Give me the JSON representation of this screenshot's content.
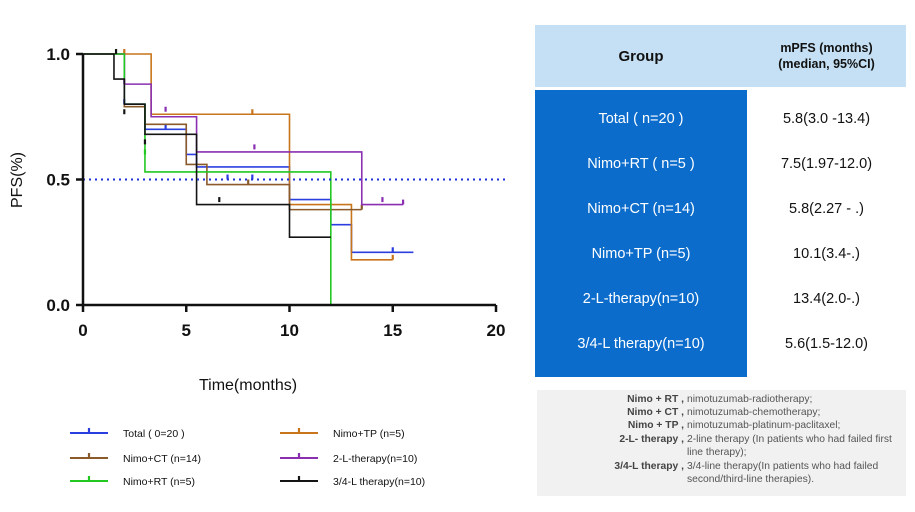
{
  "chart_data": {
    "type": "line",
    "subtype": "kaplan-meier step",
    "title": "",
    "xlabel": "Time(months)",
    "ylabel": "PFS(%)",
    "xlim": [
      0,
      20
    ],
    "ylim": [
      0,
      1.0
    ],
    "x_ticks": [
      "0",
      "5",
      "10",
      "15",
      "20"
    ],
    "y_ticks": [
      "0.0",
      "0.5",
      "1.0"
    ],
    "reference_line": {
      "y": 0.5,
      "style": "dotted",
      "color": "#1f2fd8"
    },
    "series": [
      {
        "name": "Total ( 0=20 )",
        "color": "#2b3fe0",
        "steps": [
          [
            0,
            1.0
          ],
          [
            2,
            0.8
          ],
          [
            3,
            0.7
          ],
          [
            5,
            0.6
          ],
          [
            5.5,
            0.55
          ],
          [
            10,
            0.42
          ],
          [
            12,
            0.32
          ],
          [
            13,
            0.21
          ],
          [
            16,
            0.21
          ]
        ],
        "censored": [
          [
            2,
            0.8
          ],
          [
            4,
            0.7
          ],
          [
            7,
            0.5
          ],
          [
            8.2,
            0.5
          ],
          [
            15,
            0.21
          ]
        ]
      },
      {
        "name": "Nimo+TP (n=5)",
        "color": "#c8741a",
        "steps": [
          [
            0,
            1.0
          ],
          [
            3.3,
            0.76
          ],
          [
            10,
            0.4
          ],
          [
            13,
            0.18
          ],
          [
            15,
            0.18
          ]
        ],
        "censored": [
          [
            2,
            1.0
          ],
          [
            8.2,
            0.76
          ],
          [
            15,
            0.18
          ]
        ]
      },
      {
        "name": "Nimo+CT (n=14)",
        "color": "#8a5a2b",
        "steps": [
          [
            0,
            1.0
          ],
          [
            2,
            0.79
          ],
          [
            3,
            0.72
          ],
          [
            5,
            0.56
          ],
          [
            6,
            0.48
          ],
          [
            10,
            0.38
          ],
          [
            13.5,
            0.38
          ]
        ],
        "censored": [
          [
            8,
            0.48
          ],
          [
            13.5,
            0.38
          ]
        ]
      },
      {
        "name": "2-L-therapy(n=10)",
        "color": "#8a2fb0",
        "steps": [
          [
            0,
            1.0
          ],
          [
            2,
            0.88
          ],
          [
            3.3,
            0.75
          ],
          [
            5.5,
            0.61
          ],
          [
            13.5,
            0.4
          ],
          [
            15.5,
            0.4
          ]
        ],
        "censored": [
          [
            2,
            0.88
          ],
          [
            4,
            0.77
          ],
          [
            8.3,
            0.62
          ],
          [
            14.5,
            0.41
          ],
          [
            15.5,
            0.4
          ]
        ]
      },
      {
        "name": "Nimo+RT (n=5)",
        "color": "#22c722",
        "steps": [
          [
            0,
            1.0
          ],
          [
            2,
            0.8
          ],
          [
            3,
            0.53
          ],
          [
            12,
            0.0
          ]
        ],
        "censored": [
          [
            3,
            0.6
          ]
        ]
      },
      {
        "name": "3/4-L therapy(n=10)",
        "color": "#141414",
        "steps": [
          [
            0,
            1.0
          ],
          [
            1.5,
            0.9
          ],
          [
            2,
            0.8
          ],
          [
            3,
            0.68
          ],
          [
            5.5,
            0.4
          ],
          [
            10,
            0.27
          ],
          [
            12,
            0.27
          ]
        ],
        "censored": [
          [
            1.6,
            1.0
          ],
          [
            2,
            0.76
          ],
          [
            3,
            0.64
          ],
          [
            6.6,
            0.41
          ]
        ]
      }
    ]
  },
  "legend": {
    "items": [
      {
        "label": "Total ( 0=20 )",
        "color": "#2b3fe0"
      },
      {
        "label": "Nimo+TP (n=5)",
        "color": "#c8741a"
      },
      {
        "label": "Nimo+CT (n=14)",
        "color": "#8a5a2b"
      },
      {
        "label": "2-L-therapy(n=10)",
        "color": "#8a2fb0"
      },
      {
        "label": "Nimo+RT (n=5)",
        "color": "#22c722"
      },
      {
        "label": "3/4-L therapy(n=10)",
        "color": "#141414"
      }
    ]
  },
  "table": {
    "header_group": "Group",
    "header_mpfs_line1": "mPFS (months)",
    "header_mpfs_line2": "(median, 95%CI)",
    "header_bg": "#c5e0f4",
    "group_bg": "#0b6ccc",
    "rows": [
      {
        "group": "Total ( n=20 )",
        "mpfs": "5.8(3.0 -13.4)"
      },
      {
        "group": "Nimo+RT ( n=5 )",
        "mpfs": "7.5(1.97-12.0)"
      },
      {
        "group": "Nimo+CT (n=14)",
        "mpfs": "5.8(2.27 - .)"
      },
      {
        "group": "Nimo+TP (n=5)",
        "mpfs": "10.1(3.4-.)"
      },
      {
        "group": "2-L-therapy(n=10)",
        "mpfs": "13.4(2.0-.)"
      },
      {
        "group": "3/4-L therapy(n=10)",
        "mpfs": "5.6(1.5-12.0)"
      }
    ]
  },
  "notes": [
    {
      "term": "Nimo + RT ,",
      "desc": "nimotuzumab-radiotherapy;"
    },
    {
      "term": "Nimo + CT ,",
      "desc": "nimotuzumab-chemotherapy;"
    },
    {
      "term": "Nimo + TP ,",
      "desc": "nimotuzumab-platinum-paclitaxel;"
    },
    {
      "term": "2-L- therapy ,",
      "desc": "2-line therapy (In patients who had failed first line therapy);"
    },
    {
      "term": "3/4-L therapy ,",
      "desc": "3/4-line therapy(In patients who had failed second/third-line therapies)."
    }
  ]
}
